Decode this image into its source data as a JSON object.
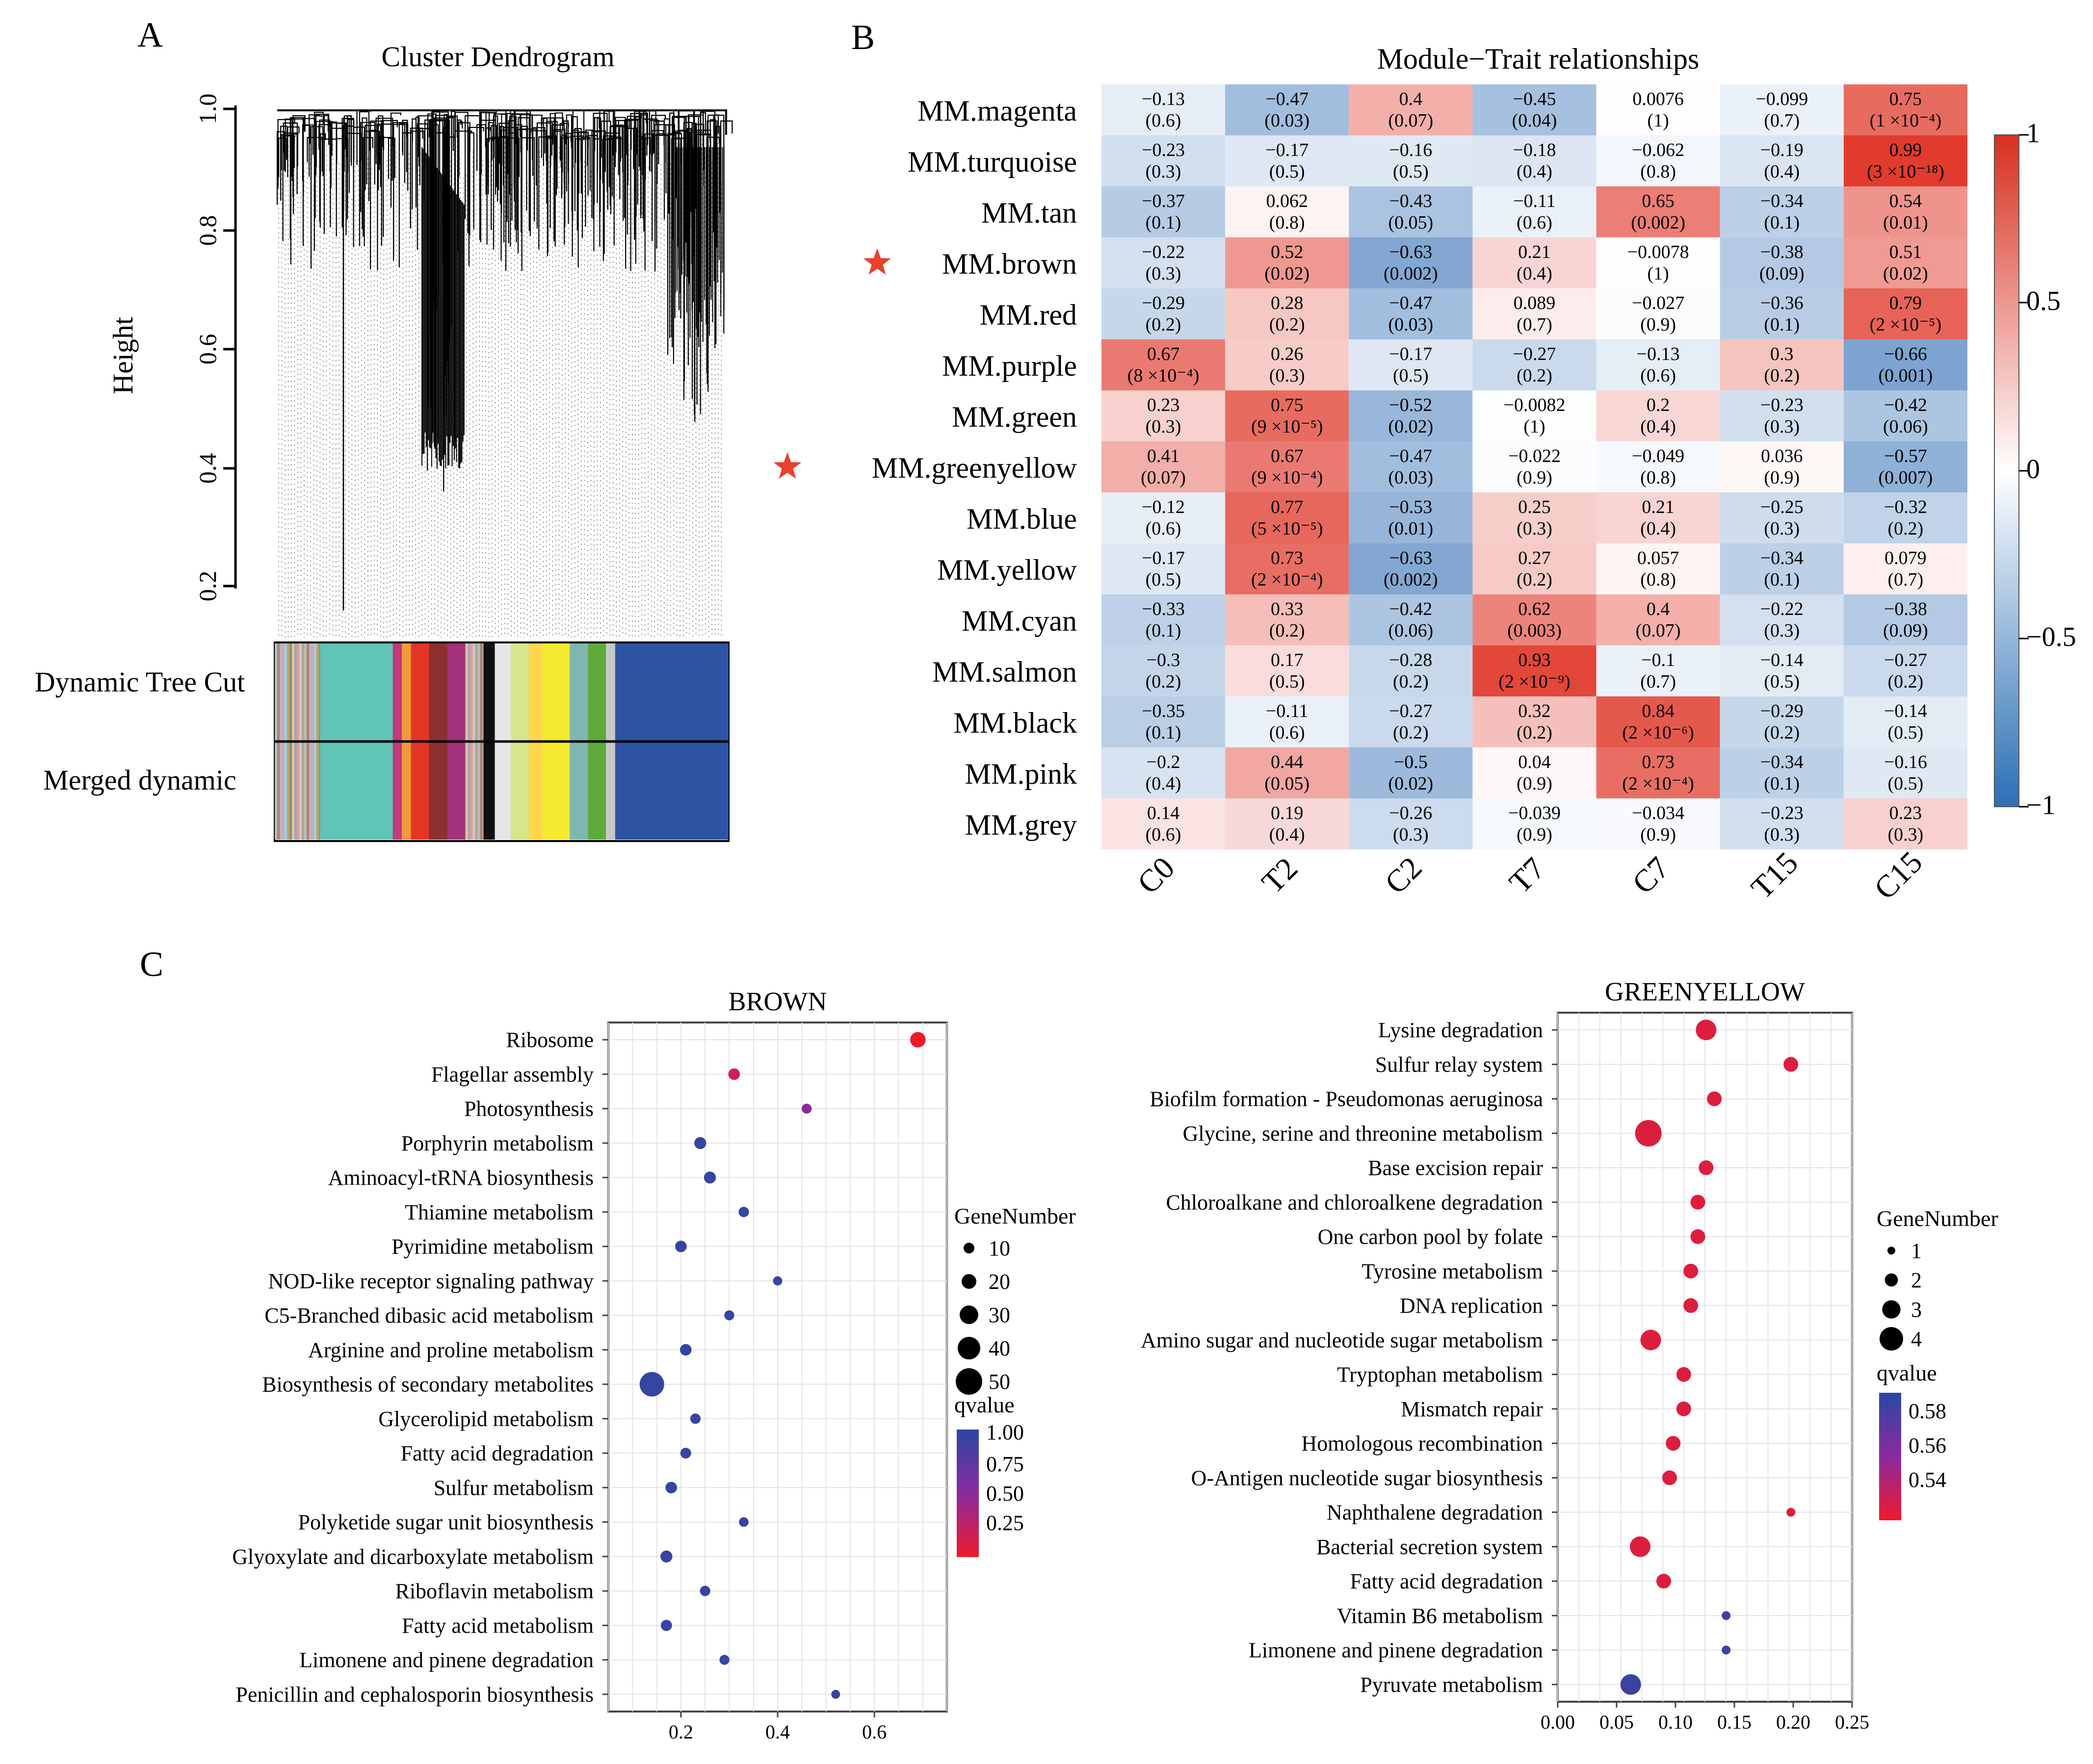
{
  "panels": {
    "A": {
      "letter": "A",
      "title": "Cluster Dendrogram",
      "ylabel": "Height",
      "yticks": [
        "0.2",
        "0.4",
        "0.6",
        "0.8",
        "1.0"
      ],
      "row1_label": "Dynamic Tree Cut",
      "row2_label": "Merged dynamic"
    },
    "B": {
      "letter": "B",
      "title": "Module−Trait relationships",
      "stars": [
        "MM.brown",
        "MM.greenyellow"
      ],
      "colorbar_ticks": [
        "1",
        "0.5",
        "0",
        "−0.5",
        "−1"
      ],
      "colors": {
        "neg": "#3a74b8",
        "mid": "#ffffff",
        "pos": "#e0392b"
      }
    },
    "C": {
      "letter": "C",
      "brown_legend": {
        "size_title": "GeneNumber",
        "sizes": [
          "10",
          "20",
          "30",
          "40",
          "50"
        ],
        "q_title": "qvalue",
        "q_ticks": [
          "1.00",
          "0.75",
          "0.50",
          "0.25"
        ]
      },
      "greenyellow_legend": {
        "size_title": "GeneNumber",
        "sizes": [
          "1",
          "2",
          "3",
          "4"
        ],
        "q_title": "qvalue",
        "q_ticks": [
          "0.58",
          "0.56",
          "0.54"
        ]
      }
    }
  },
  "chart_data": [
    {
      "type": "heatmap",
      "title": "Module−Trait relationships",
      "columns": [
        "C0",
        "T2",
        "C2",
        "T7",
        "C7",
        "T15",
        "C15"
      ],
      "rows": [
        "MM.magenta",
        "MM.turquoise",
        "MM.tan",
        "MM.brown",
        "MM.red",
        "MM.purple",
        "MM.green",
        "MM.greenyellow",
        "MM.blue",
        "MM.yellow",
        "MM.cyan",
        "MM.salmon",
        "MM.black",
        "MM.pink",
        "MM.grey"
      ],
      "values": [
        [
          -0.13,
          -0.47,
          0.4,
          -0.45,
          0.0076,
          -0.099,
          0.75
        ],
        [
          -0.23,
          -0.17,
          -0.16,
          -0.18,
          -0.062,
          -0.19,
          0.99
        ],
        [
          -0.37,
          0.062,
          -0.43,
          -0.11,
          0.65,
          -0.34,
          0.54
        ],
        [
          -0.22,
          0.52,
          -0.63,
          0.21,
          -0.0078,
          -0.38,
          0.51
        ],
        [
          -0.29,
          0.28,
          -0.47,
          0.089,
          -0.027,
          -0.36,
          0.79
        ],
        [
          0.67,
          0.26,
          -0.17,
          -0.27,
          -0.13,
          0.3,
          -0.66
        ],
        [
          0.23,
          0.75,
          -0.52,
          -0.0082,
          0.2,
          -0.23,
          -0.42
        ],
        [
          0.41,
          0.67,
          -0.47,
          -0.022,
          -0.049,
          0.036,
          -0.57
        ],
        [
          -0.12,
          0.77,
          -0.53,
          0.25,
          0.21,
          -0.25,
          -0.32
        ],
        [
          -0.17,
          0.73,
          -0.63,
          0.27,
          0.057,
          -0.34,
          0.079
        ],
        [
          -0.33,
          0.33,
          -0.42,
          0.62,
          0.4,
          -0.22,
          -0.38
        ],
        [
          -0.3,
          0.17,
          -0.28,
          0.93,
          -0.1,
          -0.14,
          -0.27
        ],
        [
          -0.35,
          -0.11,
          -0.27,
          0.32,
          0.84,
          -0.29,
          -0.14
        ],
        [
          -0.2,
          0.44,
          -0.5,
          0.04,
          0.73,
          -0.34,
          -0.16
        ],
        [
          0.14,
          0.19,
          -0.26,
          -0.039,
          -0.034,
          -0.23,
          0.23
        ]
      ],
      "labels": [
        [
          "−0.13",
          "−0.47",
          "0.4",
          "−0.45",
          "0.0076",
          "−0.099",
          "0.75"
        ],
        [
          "−0.23",
          "−0.17",
          "−0.16",
          "−0.18",
          "−0.062",
          "−0.19",
          "0.99"
        ],
        [
          "−0.37",
          "0.062",
          "−0.43",
          "−0.11",
          "0.65",
          "−0.34",
          "0.54"
        ],
        [
          "−0.22",
          "0.52",
          "−0.63",
          "0.21",
          "−0.0078",
          "−0.38",
          "0.51"
        ],
        [
          "−0.29",
          "0.28",
          "−0.47",
          "0.089",
          "−0.027",
          "−0.36",
          "0.79"
        ],
        [
          "0.67",
          "0.26",
          "−0.17",
          "−0.27",
          "−0.13",
          "0.3",
          "−0.66"
        ],
        [
          "0.23",
          "0.75",
          "−0.52",
          "−0.0082",
          "0.2",
          "−0.23",
          "−0.42"
        ],
        [
          "0.41",
          "0.67",
          "−0.47",
          "−0.022",
          "−0.049",
          "0.036",
          "−0.57"
        ],
        [
          "−0.12",
          "0.77",
          "−0.53",
          "0.25",
          "0.21",
          "−0.25",
          "−0.32"
        ],
        [
          "−0.17",
          "0.73",
          "−0.63",
          "0.27",
          "0.057",
          "−0.34",
          "0.079"
        ],
        [
          "−0.33",
          "0.33",
          "−0.42",
          "0.62",
          "0.4",
          "−0.22",
          "−0.38"
        ],
        [
          "−0.3",
          "0.17",
          "−0.28",
          "0.93",
          "−0.1",
          "−0.14",
          "−0.27"
        ],
        [
          "−0.35",
          "−0.11",
          "−0.27",
          "0.32",
          "0.84",
          "−0.29",
          "−0.14"
        ],
        [
          "−0.2",
          "0.44",
          "−0.5",
          "0.04",
          "0.73",
          "−0.34",
          "−0.16"
        ],
        [
          "0.14",
          "0.19",
          "−0.26",
          "−0.039",
          "−0.034",
          "−0.23",
          "0.23"
        ]
      ],
      "pvalues": [
        [
          "(0.6)",
          "(0.03)",
          "(0.07)",
          "(0.04)",
          "(1)",
          "(0.7)",
          "(1 ×10⁻⁴)"
        ],
        [
          "(0.3)",
          "(0.5)",
          "(0.5)",
          "(0.4)",
          "(0.8)",
          "(0.4)",
          "(3 ×10⁻¹⁸)"
        ],
        [
          "(0.1)",
          "(0.8)",
          "(0.05)",
          "(0.6)",
          "(0.002)",
          "(0.1)",
          "(0.01)"
        ],
        [
          "(0.3)",
          "(0.02)",
          "(0.002)",
          "(0.4)",
          "(1)",
          "(0.09)",
          "(0.02)"
        ],
        [
          "(0.2)",
          "(0.2)",
          "(0.03)",
          "(0.7)",
          "(0.9)",
          "(0.1)",
          "(2 ×10⁻⁵)"
        ],
        [
          "(8 ×10⁻⁴)",
          "(0.3)",
          "(0.5)",
          "(0.2)",
          "(0.6)",
          "(0.2)",
          "(0.001)"
        ],
        [
          "(0.3)",
          "(9 ×10⁻⁵)",
          "(0.02)",
          "(1)",
          "(0.4)",
          "(0.3)",
          "(0.06)"
        ],
        [
          "(0.07)",
          "(9 ×10⁻⁴)",
          "(0.03)",
          "(0.9)",
          "(0.8)",
          "(0.9)",
          "(0.007)"
        ],
        [
          "(0.6)",
          "(5 ×10⁻⁵)",
          "(0.01)",
          "(0.3)",
          "(0.4)",
          "(0.3)",
          "(0.2)"
        ],
        [
          "(0.5)",
          "(2 ×10⁻⁴)",
          "(0.002)",
          "(0.2)",
          "(0.8)",
          "(0.1)",
          "(0.7)"
        ],
        [
          "(0.1)",
          "(0.2)",
          "(0.06)",
          "(0.003)",
          "(0.07)",
          "(0.3)",
          "(0.09)"
        ],
        [
          "(0.2)",
          "(0.5)",
          "(0.2)",
          "(2 ×10⁻⁹)",
          "(0.7)",
          "(0.5)",
          "(0.2)"
        ],
        [
          "(0.1)",
          "(0.6)",
          "(0.2)",
          "(0.2)",
          "(2 ×10⁻⁶)",
          "(0.2)",
          "(0.5)"
        ],
        [
          "(0.4)",
          "(0.05)",
          "(0.02)",
          "(0.9)",
          "(2 ×10⁻⁴)",
          "(0.1)",
          "(0.5)"
        ],
        [
          "(0.6)",
          "(0.4)",
          "(0.3)",
          "(0.9)",
          "(0.9)",
          "(0.3)",
          "(0.3)"
        ]
      ],
      "color_range": [
        -1,
        1
      ]
    },
    {
      "type": "scatter",
      "title": "BROWN",
      "xticks": [
        "0.2",
        "0.4",
        "0.6"
      ],
      "xlim": [
        0.05,
        0.75
      ],
      "size_range": [
        5,
        50
      ],
      "q_range": [
        0.1,
        1.0
      ],
      "points": [
        {
          "label": "Ribosome",
          "x": 0.69,
          "size": 22,
          "q": 0.1
        },
        {
          "label": "Flagellar assembly",
          "x": 0.31,
          "size": 12,
          "q": 0.25
        },
        {
          "label": "Photosynthesis",
          "x": 0.46,
          "size": 8,
          "q": 0.55
        },
        {
          "label": "Porphyrin metabolism",
          "x": 0.24,
          "size": 13,
          "q": 0.95
        },
        {
          "label": "Aminoacyl-tRNA biosynthesis",
          "x": 0.26,
          "size": 13,
          "q": 0.95
        },
        {
          "label": "Thiamine metabolism",
          "x": 0.33,
          "size": 9,
          "q": 0.95
        },
        {
          "label": "Pyrimidine metabolism",
          "x": 0.2,
          "size": 12,
          "q": 0.95
        },
        {
          "label": "NOD-like receptor signaling pathway",
          "x": 0.4,
          "size": 6,
          "q": 0.95
        },
        {
          "label": "C5-Branched dibasic acid metabolism",
          "x": 0.3,
          "size": 8,
          "q": 0.95
        },
        {
          "label": "Arginine and proline metabolism",
          "x": 0.21,
          "size": 12,
          "q": 0.95
        },
        {
          "label": "Biosynthesis of secondary metabolites",
          "x": 0.14,
          "size": 45,
          "q": 0.95
        },
        {
          "label": "Glycerolipid metabolism",
          "x": 0.23,
          "size": 9,
          "q": 0.95
        },
        {
          "label": "Fatty acid degradation",
          "x": 0.21,
          "size": 10,
          "q": 0.95
        },
        {
          "label": "Sulfur metabolism",
          "x": 0.18,
          "size": 12,
          "q": 0.95
        },
        {
          "label": "Polyketide sugar unit biosynthesis",
          "x": 0.33,
          "size": 7,
          "q": 0.95
        },
        {
          "label": "Glyoxylate and dicarboxylate metabolism",
          "x": 0.17,
          "size": 13,
          "q": 0.95
        },
        {
          "label": "Riboflavin metabolism",
          "x": 0.25,
          "size": 9,
          "q": 0.95
        },
        {
          "label": "Fatty acid metabolism",
          "x": 0.17,
          "size": 11,
          "q": 0.95
        },
        {
          "label": "Limonene and pinene degradation",
          "x": 0.29,
          "size": 8,
          "q": 0.95
        },
        {
          "label": "Penicillin and cephalosporin biosynthesis",
          "x": 0.52,
          "size": 5,
          "q": 0.95
        }
      ]
    },
    {
      "type": "scatter",
      "title": "GREENYELLOW",
      "xticks": [
        "0.00",
        "0.05",
        "0.10",
        "0.15",
        "0.20",
        "0.25"
      ],
      "xlim": [
        0,
        0.25
      ],
      "size_range": [
        1,
        4
      ],
      "q_range": [
        0.525,
        0.585
      ],
      "points": [
        {
          "label": "Lysine degradation",
          "x": 0.126,
          "size": 3,
          "q": 0.53
        },
        {
          "label": "Sulfur relay system",
          "x": 0.198,
          "size": 2,
          "q": 0.53
        },
        {
          "label": "Biofilm formation - Pseudomonas aeruginosa",
          "x": 0.133,
          "size": 2,
          "q": 0.53
        },
        {
          "label": "Glycine, serine and threonine metabolism",
          "x": 0.077,
          "size": 4,
          "q": 0.53
        },
        {
          "label": "Base excision repair",
          "x": 0.126,
          "size": 2,
          "q": 0.53
        },
        {
          "label": "Chloroalkane and chloroalkene degradation",
          "x": 0.119,
          "size": 2,
          "q": 0.53
        },
        {
          "label": "One carbon pool by folate",
          "x": 0.119,
          "size": 2,
          "q": 0.53
        },
        {
          "label": "Tyrosine metabolism",
          "x": 0.113,
          "size": 2,
          "q": 0.53
        },
        {
          "label": "DNA replication",
          "x": 0.113,
          "size": 2,
          "q": 0.53
        },
        {
          "label": "Amino sugar and nucleotide sugar metabolism",
          "x": 0.079,
          "size": 3,
          "q": 0.53
        },
        {
          "label": "Tryptophan metabolism",
          "x": 0.107,
          "size": 2,
          "q": 0.53
        },
        {
          "label": "Mismatch repair",
          "x": 0.107,
          "size": 2,
          "q": 0.53
        },
        {
          "label": "Homologous recombination",
          "x": 0.098,
          "size": 2,
          "q": 0.53
        },
        {
          "label": "O-Antigen nucleotide sugar biosynthesis",
          "x": 0.095,
          "size": 2,
          "q": 0.53
        },
        {
          "label": "Naphthalene degradation",
          "x": 0.198,
          "size": 1,
          "q": 0.53
        },
        {
          "label": "Bacterial secretion system",
          "x": 0.07,
          "size": 3,
          "q": 0.53
        },
        {
          "label": "Fatty acid degradation",
          "x": 0.09,
          "size": 2,
          "q": 0.53
        },
        {
          "label": "Vitamin B6 metabolism",
          "x": 0.143,
          "size": 1,
          "q": 0.58
        },
        {
          "label": "Limonene and pinene degradation",
          "x": 0.143,
          "size": 1,
          "q": 0.58
        },
        {
          "label": "Pyruvate metabolism",
          "x": 0.062,
          "size": 3,
          "q": 0.58
        }
      ]
    }
  ]
}
